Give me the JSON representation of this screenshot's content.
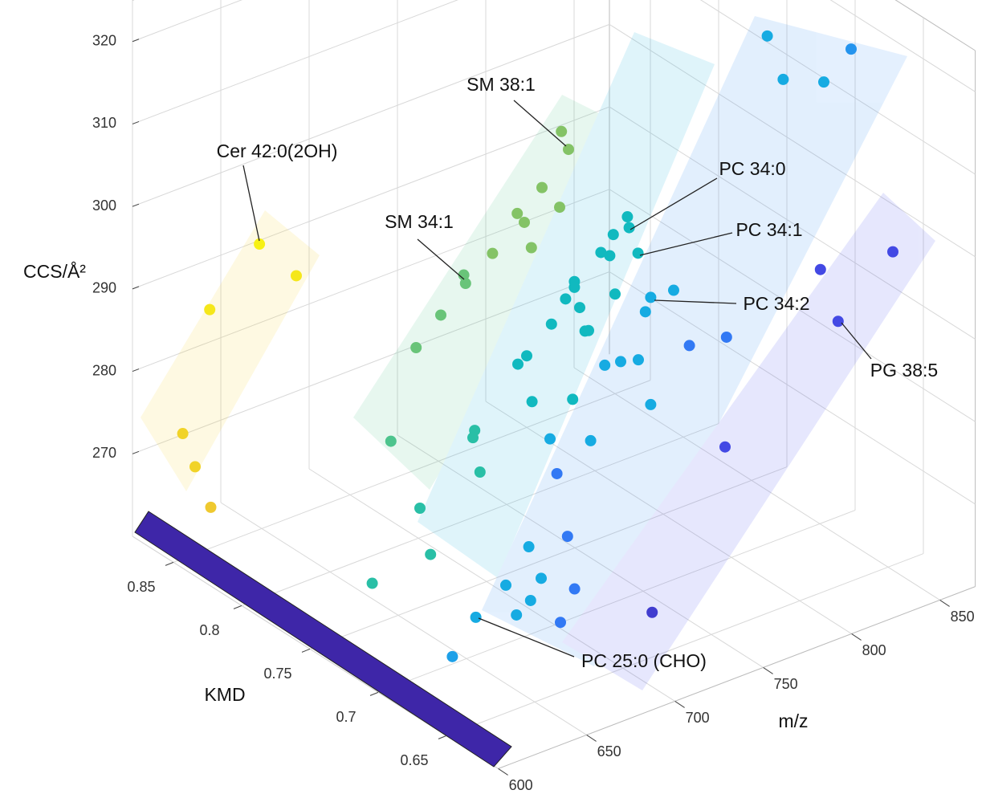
{
  "chart_data": {
    "type": "scatter3d",
    "x_label": "m/z",
    "y_label": "KMD",
    "z_label": "CCS/Å²",
    "xlim": [
      600,
      870
    ],
    "ylim": [
      0.612,
      0.88
    ],
    "zlim": [
      260,
      325
    ],
    "xticks": [
      600,
      650,
      700,
      750,
      800,
      850
    ],
    "yticks": [
      0.65,
      0.7,
      0.75,
      0.8,
      0.85
    ],
    "zticks": [
      270,
      280,
      290,
      300,
      310,
      320
    ],
    "grid": true,
    "colormap": [
      "#3e26a8",
      "#4450f0",
      "#2c88f5",
      "#14aee0",
      "#10bcb8",
      "#4cc48e",
      "#a8c34c",
      "#ebb83a",
      "#f9fb0e"
    ],
    "x": [
      668,
      685,
      636,
      613,
      620,
      625,
      781,
      785,
      770,
      780,
      756,
      760,
      764,
      742,
      718,
      719,
      705,
      691,
      669,
      701,
      700,
      704,
      670,
      676,
      643,
      772,
      773,
      764,
      757,
      762,
      778,
      742,
      742,
      765,
      737,
      745,
      729,
      748,
      750,
      715,
      710,
      718,
      741,
      762,
      775,
      759,
      736,
      745,
      755,
      705,
      728,
      762,
      693,
      700,
      680,
      694,
      686,
      663,
      642,
      753,
      774,
      678,
      684,
      688,
      680,
      828,
      837,
      860,
      860,
      845,
      804,
      814,
      750,
      701
    ],
    "y": [
      0.875,
      0.87,
      0.87,
      0.86,
      0.86,
      0.855,
      0.8,
      0.8,
      0.8,
      0.8,
      0.8,
      0.8,
      0.8,
      0.8,
      0.79,
      0.79,
      0.79,
      0.79,
      0.78,
      0.76,
      0.76,
      0.76,
      0.76,
      0.76,
      0.76,
      0.74,
      0.74,
      0.74,
      0.74,
      0.74,
      0.74,
      0.74,
      0.74,
      0.74,
      0.74,
      0.74,
      0.74,
      0.74,
      0.74,
      0.74,
      0.74,
      0.74,
      0.74,
      0.71,
      0.71,
      0.71,
      0.71,
      0.71,
      0.71,
      0.71,
      0.71,
      0.71,
      0.71,
      0.71,
      0.71,
      0.71,
      0.71,
      0.71,
      0.7,
      0.67,
      0.67,
      0.67,
      0.67,
      0.67,
      0.67,
      0.71,
      0.71,
      0.71,
      0.69,
      0.64,
      0.64,
      0.64,
      0.64,
      0.63
    ],
    "z": [
      290.4,
      285.7,
      285.6,
      273.5,
      268.9,
      264.1,
      302.7,
      300.2,
      296.8,
      293.6,
      294.8,
      293.4,
      290.0,
      291.1,
      291.5,
      290.4,
      287.7,
      284.9,
      276.4,
      277.2,
      276.4,
      271.9,
      270.3,
      264.2,
      263.4,
      299.4,
      298.0,
      297.9,
      296.3,
      295.5,
      294.5,
      294.0,
      293.3,
      290.6,
      292.3,
      290.6,
      289.9,
      287.5,
      287.4,
      287.2,
      286.6,
      281.4,
      279.8,
      293.6,
      293.4,
      292.1,
      287.5,
      287.2,
      286.6,
      281.1,
      279.0,
      280.6,
      269.0,
      264.6,
      265.4,
      262.4,
      261.3,
      262.9,
      260.9,
      292.7,
      292.0,
      283.3,
      275.2,
      268.5,
      265.1,
      319.9,
      313.9,
      311.7,
      317.8,
      299.7,
      300.9,
      293.8,
      283.8,
      268.8
    ],
    "annotations": [
      "Cer 42:0(2OH)",
      "SM 38:1",
      "SM 34:1",
      "PC 34:0",
      "PC 34:1",
      "PC 34:2",
      "PG 38:5",
      "PC 25:0 (CHO)"
    ]
  }
}
